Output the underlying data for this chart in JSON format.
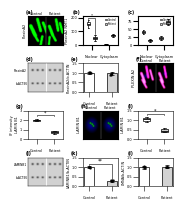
{
  "panel_labels": [
    "(a)",
    "(b)",
    "(c)",
    "(d)",
    "(e)",
    "(f)",
    "(g)",
    "(h)",
    "(i)",
    "(j)",
    "(k)",
    "(l)"
  ],
  "background_color": "#ffffff",
  "label_fontsize": 3.5,
  "tick_fontsize": 2.5,
  "axis_fontsize": 2.5,
  "micro_label_fontsize": 2.5,
  "boxplot_b": {
    "ctrl_nuclear": [
      180,
      165,
      155,
      145,
      125
    ],
    "pat_nuclear": [
      75,
      60,
      50,
      40,
      30
    ],
    "ctrl_cyto": [
      8,
      6,
      5,
      4,
      3
    ],
    "pat_cyto": [
      65,
      72,
      78,
      70,
      60
    ],
    "ylabel": "PlexinA2 NMT1",
    "ylim": [
      0,
      210
    ]
  },
  "boxplot_c": {
    "ctrl_nuclear": [
      48,
      44,
      40,
      37,
      34
    ],
    "pat_nuclear": [
      18,
      16,
      14,
      12,
      10
    ],
    "ctrl_cyto": [
      28,
      25,
      22,
      19,
      16
    ],
    "pat_cyto": [
      62,
      67,
      72,
      76,
      80
    ],
    "ylabel": "",
    "ylim": [
      0,
      90
    ]
  },
  "barplot_e": {
    "categories": [
      "Control",
      "Patient"
    ],
    "values": [
      1.0,
      0.98
    ],
    "errors": [
      0.07,
      0.09
    ],
    "bar_colors": [
      "#ffffff",
      "#d3d3d3"
    ],
    "edge_colors": [
      "#000000",
      "#000000"
    ],
    "ylabel": "PlexinA2/b-ACTIN",
    "ylim": [
      0,
      1.5
    ]
  },
  "boxplot_g": {
    "ctrl_vals": [
      2.0,
      1.85,
      2.15,
      1.95,
      2.05
    ],
    "pat_vals": [
      0.9,
      0.75,
      0.65,
      0.55,
      0.85
    ],
    "ylabel": "IF intensity\nLAMIN B1",
    "ylim": [
      0,
      3.0
    ]
  },
  "boxplot_i": {
    "ctrl_vals": [
      1.05,
      0.95,
      1.1,
      0.88,
      1.15
    ],
    "pat_vals": [
      0.42,
      0.35,
      0.52,
      0.58,
      0.38
    ],
    "ylabel": "LAMIN B1",
    "ylim": [
      0,
      1.5
    ]
  },
  "barplot_k": {
    "categories": [
      "Control",
      "Patient"
    ],
    "values": [
      1.0,
      0.28
    ],
    "errors": [
      0.06,
      0.04
    ],
    "bar_colors": [
      "#ffffff",
      "#d3d3d3"
    ],
    "edge_colors": [
      "#000000",
      "#000000"
    ],
    "ylabel": "LAMINB1/b-ACTIN",
    "ylim": [
      0,
      1.5
    ],
    "sig": "**"
  },
  "barplot_l": {
    "categories": [
      "Control",
      "Patient"
    ],
    "values": [
      1.0,
      1.02
    ],
    "errors": [
      0.07,
      0.08
    ],
    "bar_colors": [
      "#ffffff",
      "#d3d3d3"
    ],
    "edge_colors": [
      "#000000",
      "#000000"
    ],
    "ylabel": "LMNA/b-ACTIN",
    "ylim": [
      0,
      1.5
    ]
  },
  "wb_d_labels": [
    "PlexinA2",
    "b-ACTIN"
  ],
  "wb_j_labels": [
    "LAMINB1",
    "b-ACTIN"
  ]
}
